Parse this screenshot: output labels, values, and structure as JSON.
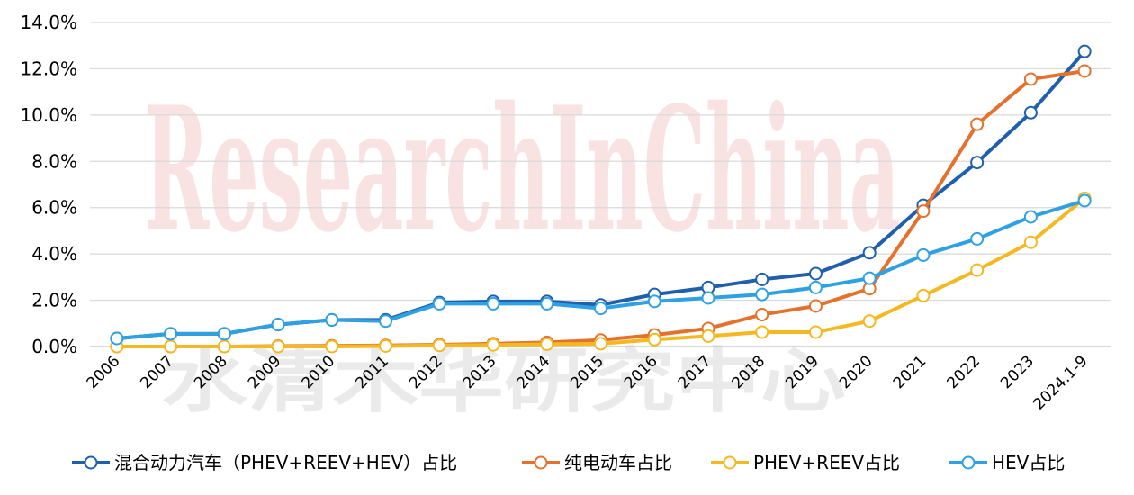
{
  "chart_data": {
    "type": "line",
    "title": "",
    "xlabel": "",
    "ylabel": "",
    "categories": [
      "2006",
      "2007",
      "2008",
      "2009",
      "2010",
      "2011",
      "2012",
      "2013",
      "2014",
      "2015",
      "2016",
      "2017",
      "2018",
      "2019",
      "2020",
      "2021",
      "2022",
      "2023",
      "2024.1-9"
    ],
    "ylim": [
      0,
      14
    ],
    "yticks": [
      "0.0%",
      "2.0%",
      "4.0%",
      "6.0%",
      "8.0%",
      "10.0%",
      "12.0%",
      "14.0%"
    ],
    "grid": true,
    "legend_position": "bottom",
    "series": [
      {
        "name": "混合动力汽车（PHEV+REEV+HEV）占比",
        "color": "#1f5fad",
        "values": [
          0.35,
          0.55,
          0.55,
          0.95,
          1.15,
          1.15,
          1.9,
          1.95,
          1.95,
          1.8,
          2.25,
          2.55,
          2.9,
          3.15,
          4.05,
          6.1,
          7.95,
          10.1,
          12.75
        ]
      },
      {
        "name": "纯电动车占比",
        "color": "#e4722c",
        "values": [
          0.0,
          0.0,
          0.0,
          0.02,
          0.03,
          0.05,
          0.08,
          0.12,
          0.18,
          0.28,
          0.5,
          0.78,
          1.38,
          1.75,
          2.5,
          5.85,
          9.6,
          11.55,
          11.9
        ]
      },
      {
        "name": "PHEV+REEV占比",
        "color": "#f5b821",
        "values": [
          0.0,
          0.0,
          0.0,
          0.0,
          0.0,
          0.02,
          0.05,
          0.07,
          0.1,
          0.12,
          0.3,
          0.45,
          0.62,
          0.62,
          1.1,
          2.2,
          3.3,
          4.5,
          6.4
        ]
      },
      {
        "name": "HEV占比",
        "color": "#2ea1e3",
        "values": [
          0.35,
          0.55,
          0.55,
          0.95,
          1.15,
          1.1,
          1.85,
          1.85,
          1.85,
          1.65,
          1.95,
          2.1,
          2.25,
          2.55,
          2.95,
          3.95,
          4.65,
          5.6,
          6.3
        ]
      }
    ]
  },
  "watermark": {
    "latin": "ResearchInChina",
    "chinese": "水清木华研究中心"
  }
}
